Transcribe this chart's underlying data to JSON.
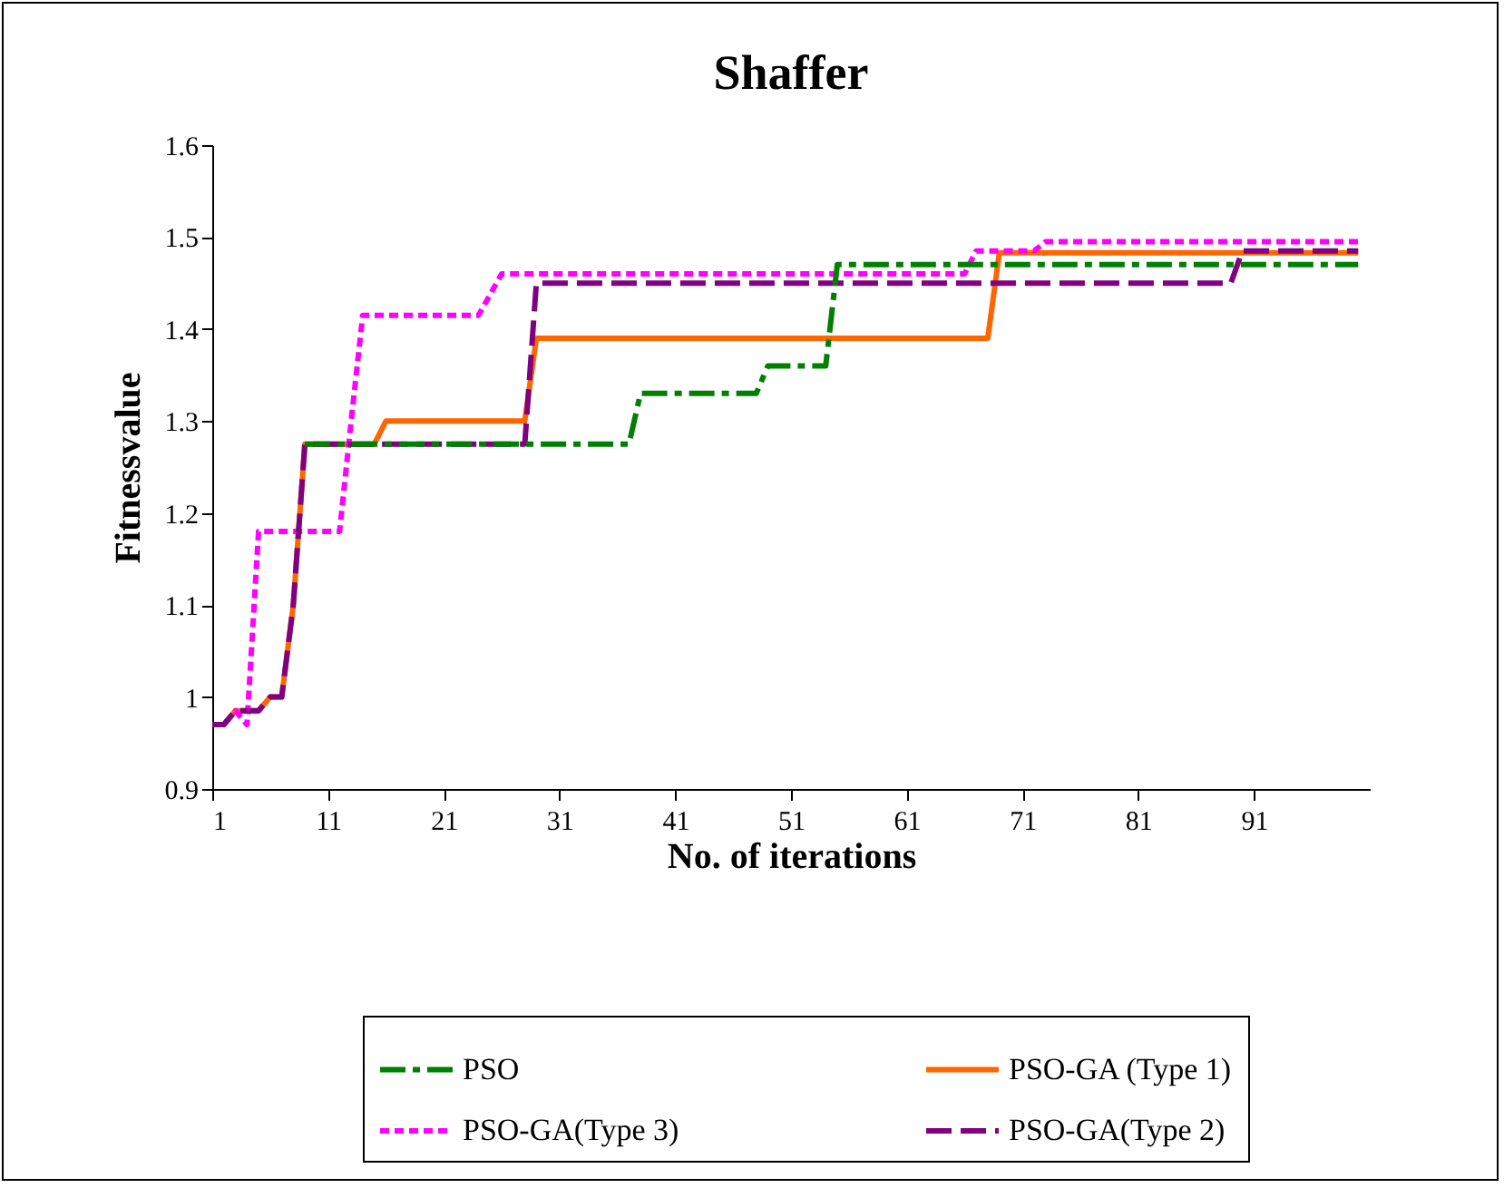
{
  "chart_data": {
    "type": "line",
    "title": "Shaffer",
    "xlabel": "No. of iterations",
    "ylabel": "Fitnessvalue",
    "xlim": [
      1,
      101
    ],
    "xticks": [
      1,
      11,
      21,
      31,
      41,
      51,
      61,
      71,
      81,
      91
    ],
    "ylim": [
      0.9,
      1.6
    ],
    "yticks": [
      0.9,
      1,
      1.1,
      1.2,
      1.3,
      1.4,
      1.5,
      1.6
    ],
    "grid": false,
    "legend": "bottom",
    "marker": "none",
    "series": [
      {
        "name": "PSO",
        "color": "#008000",
        "line_style": "dashdot",
        "x": [
          9,
          37,
          38,
          48,
          49,
          54,
          55,
          100
        ],
        "values": [
          1.275,
          1.275,
          1.33,
          1.33,
          1.36,
          1.36,
          1.47,
          1.47
        ]
      },
      {
        "name": "PSO-GA (Type 1)",
        "color": "#ff6600",
        "line_style": "solid",
        "x": [
          1,
          2,
          3,
          5,
          6,
          7,
          8,
          9,
          15,
          16,
          28,
          29,
          68,
          69,
          100
        ],
        "values": [
          0.97,
          0.97,
          0.985,
          0.985,
          1.0,
          1.0,
          1.1,
          1.275,
          1.275,
          1.3,
          1.3,
          1.39,
          1.39,
          1.483,
          1.483
        ]
      },
      {
        "name": "PSO-GA(Type 3)",
        "color": "#ff00ff",
        "line_style": "dotted",
        "x": [
          1,
          2,
          3,
          4,
          5,
          12,
          13,
          14,
          24,
          26,
          66,
          67,
          72,
          73,
          100
        ],
        "values": [
          0.97,
          0.97,
          0.985,
          0.97,
          1.18,
          1.18,
          1.3,
          1.415,
          1.415,
          1.46,
          1.46,
          1.485,
          1.485,
          1.495,
          1.495
        ]
      },
      {
        "name": "PSO-GA(Type 2)",
        "color": "#800080",
        "line_style": "dashed",
        "x": [
          1,
          2,
          3,
          5,
          6,
          7,
          8,
          9,
          28,
          29,
          89,
          90,
          100
        ],
        "values": [
          0.97,
          0.97,
          0.985,
          0.985,
          1.0,
          1.0,
          1.1,
          1.275,
          1.275,
          1.45,
          1.45,
          1.485,
          1.485
        ]
      }
    ]
  }
}
